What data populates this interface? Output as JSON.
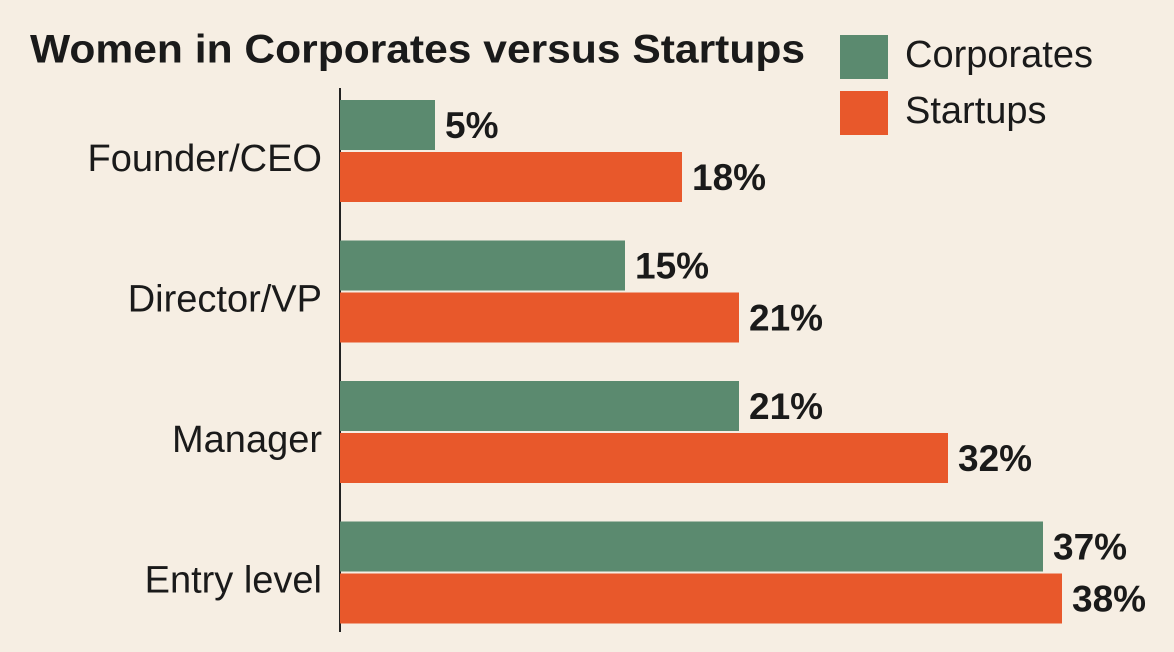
{
  "chart_data": {
    "type": "bar",
    "orientation": "horizontal",
    "title": "Women in Corporates versus Startups",
    "categories": [
      "Founder/CEO",
      "Director/VP",
      "Manager",
      "Entry level"
    ],
    "series": [
      {
        "name": "Corporates",
        "color": "#5b8a6f",
        "values": [
          5,
          15,
          21,
          37
        ],
        "value_labels": [
          "5%",
          "15%",
          "21%",
          "37%"
        ]
      },
      {
        "name": "Startups",
        "color": "#e8582b",
        "values": [
          18,
          21,
          32,
          38
        ],
        "value_labels": [
          "18%",
          "21%",
          "32%",
          "38%"
        ]
      }
    ],
    "legend": "top-right"
  }
}
